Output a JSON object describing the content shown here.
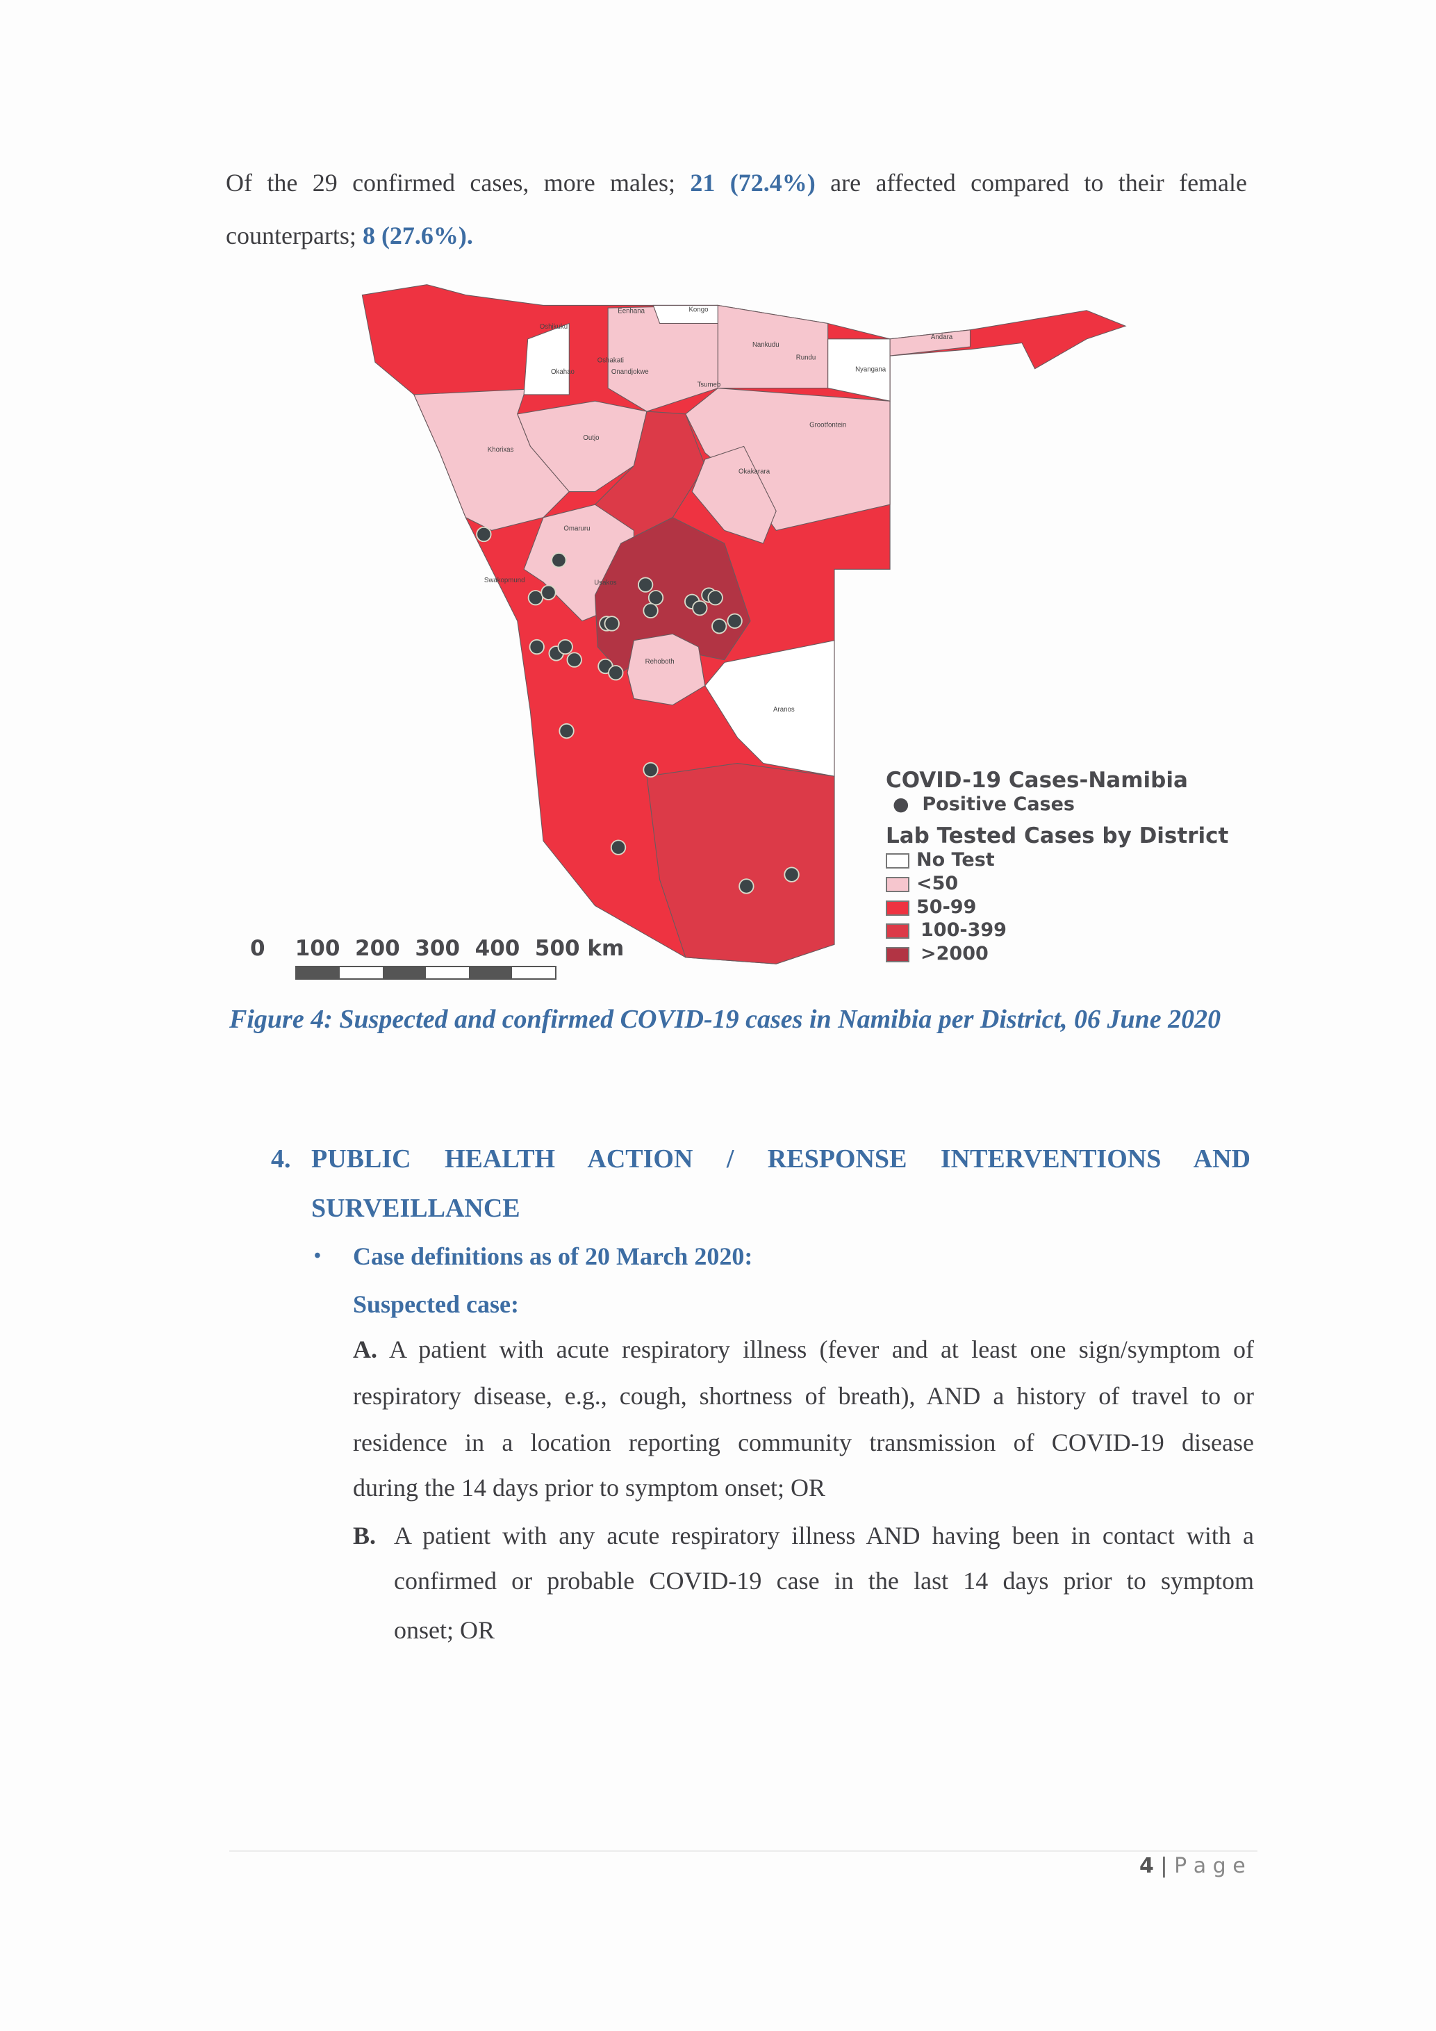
{
  "intro": {
    "line1_a": "Of the 29 confirmed cases, more males;",
    "line1_b": "21 (72.4%)",
    "line1_c": "are affected compared to their female",
    "line2_a": "counterparts;",
    "line2_b": "8 (27.6%)."
  },
  "map": {
    "legend": {
      "title": "COVID-19 Cases-Namibia",
      "points_label": "Positive Cases",
      "subtitle": "Lab Tested Cases by District",
      "classes": [
        {
          "label": "No Test",
          "color": "#ffffff"
        },
        {
          "label": "<50",
          "color": "#f6c6ce"
        },
        {
          "label": "50-99",
          "color": "#ee3341"
        },
        {
          "label": "100-399",
          "color": "#dc3a48"
        },
        {
          "label": ">2000",
          "color": "#b23444"
        }
      ]
    },
    "scale_bar": "0    100  200  300  400  500 km",
    "district_labels": [
      "Oshikuku",
      "Eenhana",
      "Kongo",
      "Okahao",
      "Oshakati",
      "Onandjokwe",
      "Nankudu",
      "Rundu",
      "Nyangana",
      "Andara",
      "Tsumeb",
      "Grootfontein",
      "Khorixas",
      "Outjo",
      "Okakarara",
      "Omaruru",
      "Usakos",
      "Swakopmund",
      "Rehoboth",
      "Aranos"
    ]
  },
  "caption": "Figure 4: Suspected and confirmed COVID-19 cases in Namibia per District, 06 June 2020",
  "section": {
    "number": "4.",
    "title_line1": "PUBLIC HEALTH ACTION / RESPONSE INTERVENTIONS AND",
    "title_line2": "SURVEILLANCE",
    "bullet": "Case definitions as of 20 March 2020:",
    "subheading": "Suspected case:",
    "para_a_label": "A.",
    "para_a": [
      "A patient with acute respiratory illness (fever and at least one sign/symptom of",
      "respiratory disease, e.g., cough, shortness of breath), AND a history of travel to or",
      "residence in a location reporting community transmission of COVID-19 disease",
      "during the 14 days prior to symptom onset;  OR"
    ],
    "para_b_label": "B.",
    "para_b": [
      "A patient with any acute respiratory illness AND having been in contact with a",
      "confirmed or probable COVID-19 case in the last 14 days prior to symptom",
      "onset; OR"
    ]
  },
  "footer": {
    "page_number": "4",
    "page_label": "P a g e"
  }
}
